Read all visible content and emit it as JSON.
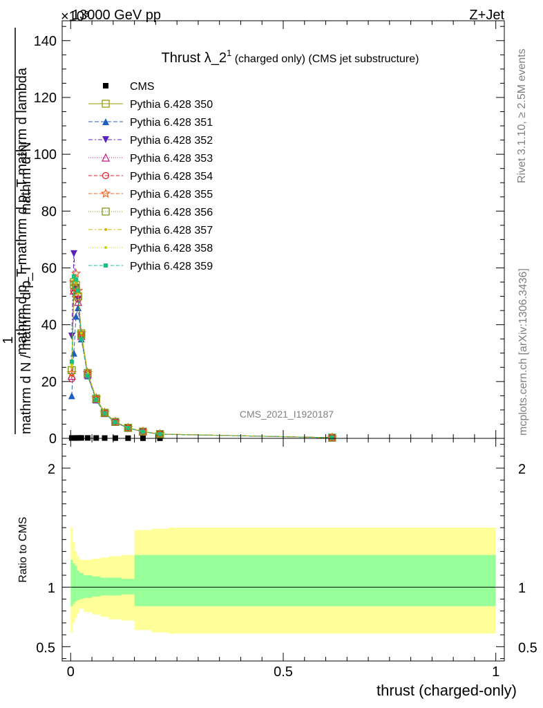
{
  "header": {
    "left": "13000 GeV pp",
    "right": "Z+Jet",
    "exponent": "×10³"
  },
  "side": {
    "rivet": "Rivet 3.1.10, ≥ 2.5M events",
    "mcplots": "mcplots.cern.ch [arXiv:1306.3436]"
  },
  "watermark": "CMS_2021_I1920187",
  "chart_data": [
    {
      "type": "line",
      "title_main": "Thrust λ_2",
      "title_sup": "1",
      "title_rest": " (charged only) (CMS jet substructure)",
      "ylabel_num": "mathrm d²N",
      "ylabel_den": "mathrm d p_T mathrm d p_T mathrm d lambda",
      "ylabel_frac": "1",
      "ylabel_den2": "mathrm d N / mathrm d p_T",
      "ylim": [
        0,
        147000
      ],
      "y_scale_factor": 1000,
      "yticks": [
        0,
        20,
        40,
        60,
        80,
        100,
        120,
        140
      ],
      "xlim": [
        -0.02,
        1.02
      ],
      "grid": false,
      "legend_position": "top-left",
      "x": [
        0.0025,
        0.0075,
        0.0125,
        0.0175,
        0.025,
        0.04,
        0.06,
        0.08,
        0.105,
        0.135,
        0.17,
        0.21,
        0.615
      ],
      "series": [
        {
          "name": "CMS",
          "color": "#000000",
          "marker": "square-filled",
          "dash": "none",
          "values": [
            120,
            130,
            140,
            150,
            160,
            150,
            130,
            110,
            90,
            70,
            50,
            40,
            10
          ]
        },
        {
          "name": "Pythia 6.428 350",
          "color": "#999900",
          "marker": "square-open",
          "dash": "solid",
          "values": [
            24000,
            54000,
            53000,
            50000,
            37000,
            23000,
            14000,
            9000,
            5800,
            3700,
            2400,
            1500,
            250
          ]
        },
        {
          "name": "Pythia 6.428 351",
          "color": "#1f5fbf",
          "marker": "triangle-up-filled",
          "dash": "6,3",
          "values": [
            15000,
            30000,
            43000,
            46000,
            35000,
            22000,
            13500,
            8700,
            5600,
            3600,
            2300,
            1450,
            240
          ]
        },
        {
          "name": "Pythia 6.428 352",
          "color": "#5a22b8",
          "marker": "triangle-down-filled",
          "dash": "6,3,2,3",
          "values": [
            36000,
            65000,
            53000,
            49000,
            36000,
            22500,
            13700,
            8800,
            5700,
            3600,
            2300,
            1450,
            240
          ]
        },
        {
          "name": "Pythia 6.428 353",
          "color": "#c0177f",
          "marker": "triangle-up-open",
          "dash": "1,2",
          "values": [
            22000,
            52000,
            51000,
            48000,
            36000,
            22500,
            13800,
            8900,
            5750,
            3650,
            2350,
            1480,
            245
          ]
        },
        {
          "name": "Pythia 6.428 354",
          "color": "#d91c24",
          "marker": "circle-open",
          "dash": "5,3",
          "values": [
            21000,
            52000,
            53000,
            49000,
            36500,
            23000,
            14000,
            9000,
            5800,
            3700,
            2400,
            1500,
            250
          ]
        },
        {
          "name": "Pythia 6.428 355",
          "color": "#f26522",
          "marker": "star-open",
          "dash": "5,3",
          "values": [
            23000,
            55000,
            58000,
            52000,
            37000,
            23000,
            14200,
            9100,
            5850,
            3750,
            2420,
            1510,
            252
          ]
        },
        {
          "name": "Pythia 6.428 356",
          "color": "#7f9c1c",
          "marker": "square-open",
          "dash": "1,2",
          "values": [
            24000,
            55000,
            54000,
            50000,
            36500,
            23000,
            14000,
            9000,
            5800,
            3700,
            2400,
            1500,
            250
          ]
        },
        {
          "name": "Pythia 6.428 357",
          "color": "#d4b400",
          "marker": "dot",
          "dash": "6,3,2,3",
          "values": [
            25000,
            56000,
            55000,
            51000,
            37000,
            23000,
            14100,
            9050,
            5820,
            3720,
            2410,
            1505,
            251
          ]
        },
        {
          "name": "Pythia 6.428 358",
          "color": "#c8d400",
          "marker": "dot",
          "dash": "1,2",
          "values": [
            26000,
            57000,
            56000,
            51000,
            37000,
            23000,
            14100,
            9050,
            5820,
            3720,
            2410,
            1505,
            251
          ]
        },
        {
          "name": "Pythia 6.428 359",
          "color": "#1dbf7f",
          "marker": "square-filled-small",
          "dash": "5,3",
          "values": [
            27000,
            57000,
            56000,
            52000,
            35000,
            22000,
            13600,
            8800,
            5700,
            3650,
            2350,
            1470,
            245
          ]
        }
      ]
    },
    {
      "type": "area",
      "ylabel": "Ratio to CMS",
      "xlabel": "thrust (charged-only)",
      "ylim": [
        0.38,
        2.25
      ],
      "yticks": [
        0.5,
        1,
        2
      ],
      "xticks": [
        0,
        0.5,
        1
      ],
      "xlim": [
        -0.02,
        1.02
      ],
      "reference_line": 1,
      "bins": [
        0,
        0.005,
        0.01,
        0.015,
        0.02,
        0.03,
        0.05,
        0.07,
        0.09,
        0.12,
        0.15,
        0.19,
        0.23,
        1.0
      ],
      "band_inner": {
        "color": "#99ff99",
        "lo": [
          0.84,
          0.86,
          0.88,
          0.89,
          0.9,
          0.91,
          0.92,
          0.93,
          0.93,
          0.94,
          0.84,
          0.84,
          0.84
        ],
        "hi": [
          1.23,
          1.2,
          1.18,
          1.14,
          1.12,
          1.1,
          1.09,
          1.08,
          1.08,
          1.07,
          1.27,
          1.27,
          1.27
        ]
      },
      "band_outer": {
        "color": "#ffff99",
        "lo": [
          0.62,
          0.7,
          0.74,
          0.78,
          0.82,
          0.79,
          0.77,
          0.75,
          0.73,
          0.72,
          0.64,
          0.62,
          0.61
        ],
        "hi": [
          1.5,
          1.38,
          1.3,
          1.26,
          1.23,
          1.23,
          1.24,
          1.25,
          1.26,
          1.27,
          1.48,
          1.49,
          1.5
        ]
      }
    }
  ]
}
